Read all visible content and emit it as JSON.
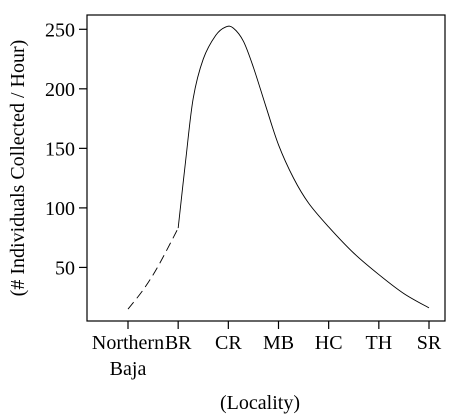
{
  "chart_data": {
    "type": "line",
    "title": "",
    "xlabel": "(Locality)",
    "ylabel": "(# Individuals Collected / Hour)",
    "categories": [
      [
        "Northern",
        "Baja"
      ],
      [
        "BR"
      ],
      [
        "CR"
      ],
      [
        "MB"
      ],
      [
        "HC"
      ],
      [
        "TH"
      ],
      [
        "SR"
      ]
    ],
    "yticks": [
      50,
      100,
      150,
      200,
      250
    ],
    "ylim": [
      5,
      262
    ],
    "grid": false,
    "legend": "none",
    "series": [
      {
        "style": "dashed",
        "points": [
          {
            "x": 0,
            "y": 15
          },
          {
            "x": 0.3,
            "y": 31
          },
          {
            "x": 0.6,
            "y": 51
          },
          {
            "x": 1.0,
            "y": 83
          }
        ]
      },
      {
        "style": "solid",
        "points": [
          {
            "x": 1.0,
            "y": 83
          },
          {
            "x": 1.15,
            "y": 140
          },
          {
            "x": 1.3,
            "y": 192
          },
          {
            "x": 1.5,
            "y": 225
          },
          {
            "x": 1.75,
            "y": 245
          },
          {
            "x": 1.95,
            "y": 252
          },
          {
            "x": 2.1,
            "y": 251
          },
          {
            "x": 2.3,
            "y": 240
          },
          {
            "x": 2.5,
            "y": 218
          },
          {
            "x": 2.75,
            "y": 185
          },
          {
            "x": 3.0,
            "y": 153
          },
          {
            "x": 3.3,
            "y": 125
          },
          {
            "x": 3.6,
            "y": 104
          },
          {
            "x": 4.0,
            "y": 84
          },
          {
            "x": 4.5,
            "y": 62
          },
          {
            "x": 5.0,
            "y": 44
          },
          {
            "x": 5.5,
            "y": 28
          },
          {
            "x": 6.0,
            "y": 16
          }
        ]
      }
    ]
  }
}
